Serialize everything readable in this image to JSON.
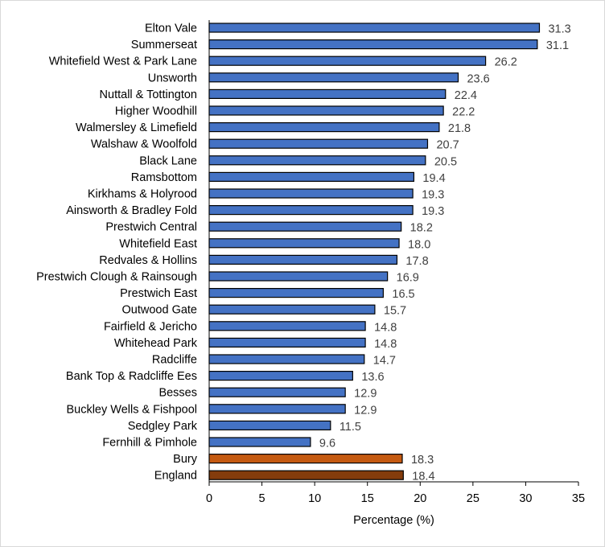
{
  "chart_data": {
    "type": "bar",
    "orientation": "horizontal",
    "categories": [
      "Elton Vale",
      "Summerseat",
      "Whitefield West & Park Lane",
      "Unsworth",
      "Nuttall & Tottington",
      "Higher Woodhill",
      "Walmersley & Limefield",
      "Walshaw & Woolfold",
      "Black Lane",
      "Ramsbottom",
      "Kirkhams & Holyrood",
      "Ainsworth & Bradley Fold",
      "Prestwich Central",
      "Whitefield East",
      "Redvales & Hollins",
      "Prestwich Clough & Rainsough",
      "Prestwich East",
      "Outwood Gate",
      "Fairfield & Jericho",
      "Whitehead Park",
      "Radcliffe",
      "Bank Top & Radcliffe Ees",
      "Besses",
      "Buckley Wells & Fishpool",
      "Sedgley Park",
      "Fernhill & Pimhole",
      "Bury",
      "England"
    ],
    "values": [
      31.3,
      31.1,
      26.2,
      23.6,
      22.4,
      22.2,
      21.8,
      20.7,
      20.5,
      19.4,
      19.3,
      19.3,
      18.2,
      18.0,
      17.8,
      16.9,
      16.5,
      15.7,
      14.8,
      14.8,
      14.7,
      13.6,
      12.9,
      12.9,
      11.5,
      9.6,
      18.3,
      18.4
    ],
    "value_labels": [
      "31.3",
      "31.1",
      "26.2",
      "23.6",
      "22.4",
      "22.2",
      "21.8",
      "20.7",
      "20.5",
      "19.4",
      "19.3",
      "19.3",
      "18.2",
      "18.0",
      "17.8",
      "16.9",
      "16.5",
      "15.7",
      "14.8",
      "14.8",
      "14.7",
      "13.6",
      "12.9",
      "12.9",
      "11.5",
      "9.6",
      "18.3",
      "18.4"
    ],
    "colors": [
      "#4472c4",
      "#4472c4",
      "#4472c4",
      "#4472c4",
      "#4472c4",
      "#4472c4",
      "#4472c4",
      "#4472c4",
      "#4472c4",
      "#4472c4",
      "#4472c4",
      "#4472c4",
      "#4472c4",
      "#4472c4",
      "#4472c4",
      "#4472c4",
      "#4472c4",
      "#4472c4",
      "#4472c4",
      "#4472c4",
      "#4472c4",
      "#4472c4",
      "#4472c4",
      "#4472c4",
      "#4472c4",
      "#4472c4",
      "#c55a11",
      "#843c0c"
    ],
    "xlabel": "Percentage (%)",
    "ylabel": "",
    "xlim": [
      0,
      35
    ],
    "xticks": [
      0,
      5,
      10,
      15,
      20,
      25,
      30,
      35
    ],
    "xtick_labels": [
      "0",
      "5",
      "10",
      "15",
      "20",
      "25",
      "30",
      "35"
    ],
    "grid": false,
    "bar_outline_color": "#000000"
  }
}
